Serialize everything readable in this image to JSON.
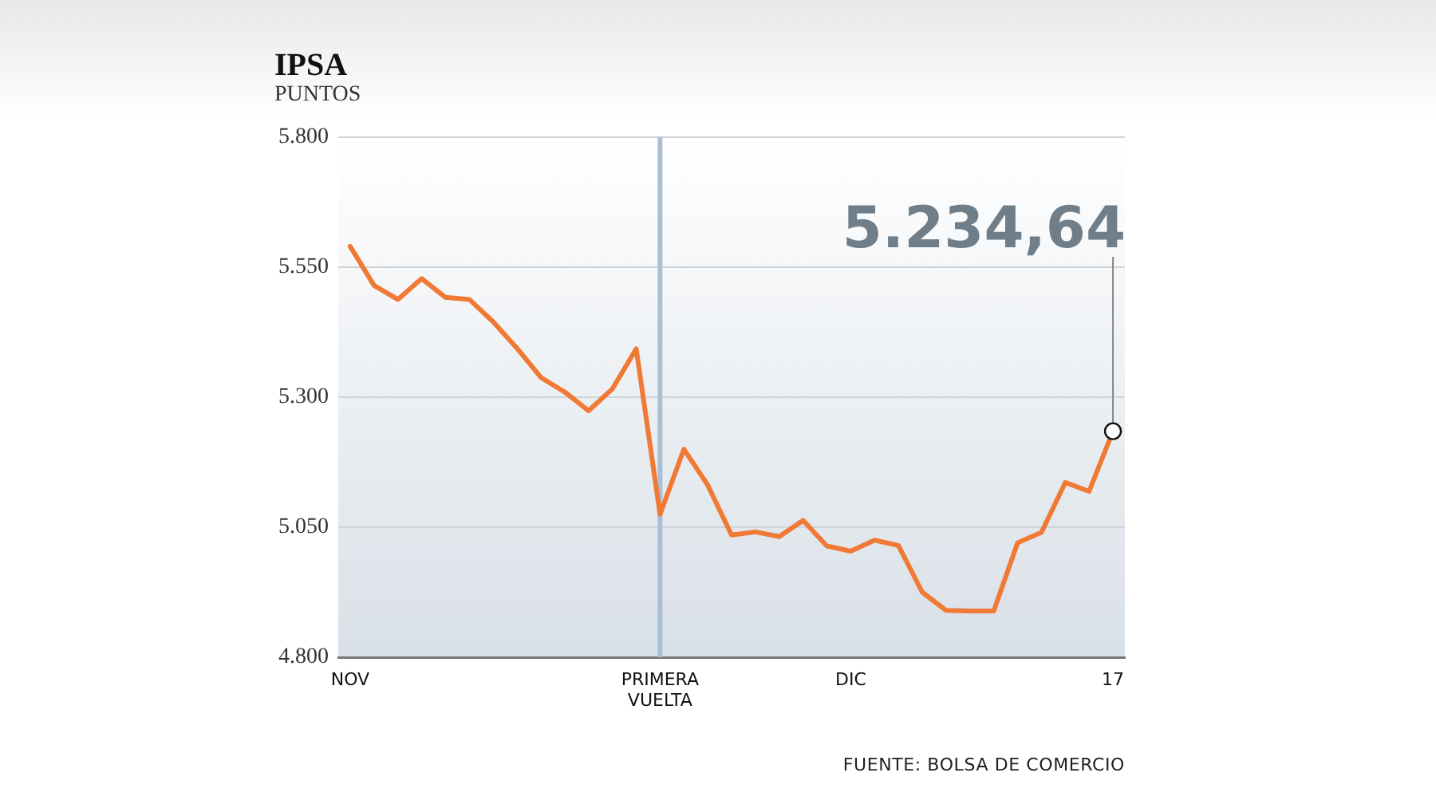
{
  "chart_data": {
    "type": "line",
    "title": "IPSA",
    "subtitle": "PUNTOS",
    "categories": [
      "NOV",
      null,
      null,
      null,
      null,
      null,
      null,
      null,
      null,
      null,
      null,
      null,
      null,
      "PRIMERA VUELTA",
      null,
      null,
      null,
      null,
      null,
      null,
      null,
      "DIC",
      null,
      null,
      null,
      null,
      null,
      null,
      null,
      null,
      null,
      null,
      "17"
    ],
    "series": [
      {
        "color": "#f07a35",
        "values": [
          5590,
          5515,
          5488,
          5528,
          5492,
          5488,
          5445,
          5394,
          5338,
          5310,
          5274,
          5316,
          5393,
          5075,
          5200,
          5131,
          5035,
          5041,
          5032,
          5063,
          5014,
          5004,
          5025,
          5015,
          4925,
          4890,
          4889,
          4889,
          5020,
          5040,
          5136,
          5119,
          5234.64
        ]
      }
    ],
    "ylim": [
      4800,
      5800
    ],
    "yticks": [
      {
        "value": 4800,
        "label": "4.800"
      },
      {
        "value": 5050,
        "label": "5.050"
      },
      {
        "value": 5300,
        "label": "5.300"
      },
      {
        "value": 5550,
        "label": "5.550"
      },
      {
        "value": 5800,
        "label": "5.800"
      }
    ],
    "grid": "y",
    "ref_lines": [
      {
        "axis": "x",
        "value": "PRIMERA VUELTA",
        "color": "#a9bfd4"
      }
    ],
    "annotations": [
      {
        "text": "5.234,64",
        "x": "17",
        "y": 5234.64
      },
      "FUENTE: BOLSA DE COMERCIO"
    ]
  }
}
